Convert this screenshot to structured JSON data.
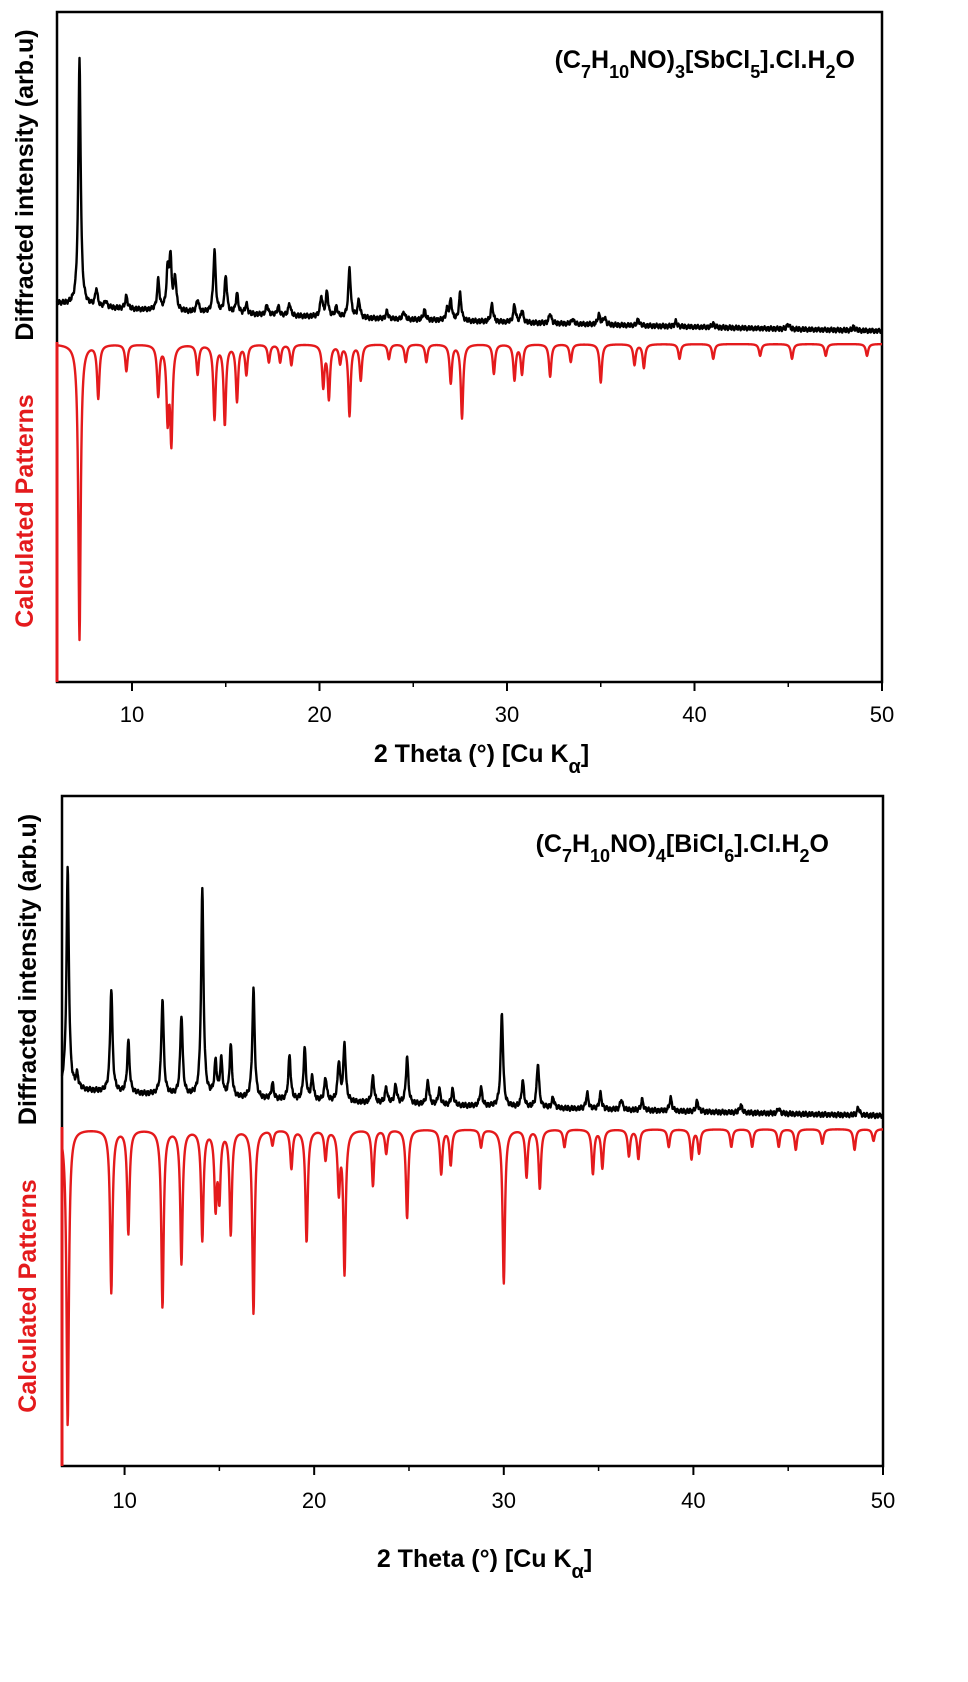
{
  "chart_data": [
    {
      "type": "line",
      "title_parts": [
        {
          "t": "(C",
          "s": "n"
        },
        {
          "t": "7",
          "s": "sub"
        },
        {
          "t": "H",
          "s": "n"
        },
        {
          "t": "10",
          "s": "sub"
        },
        {
          "t": "NO)",
          "s": "n"
        },
        {
          "t": "3",
          "s": "sub"
        },
        {
          "t": "[SbCl",
          "s": "n"
        },
        {
          "t": "5",
          "s": "sub"
        },
        {
          "t": "].Cl.H",
          "s": "n"
        },
        {
          "t": "2",
          "s": "sub"
        },
        {
          "t": "O",
          "s": "n"
        }
      ],
      "xlabel_parts": [
        {
          "t": "2 Theta (°) [Cu K",
          "s": "n"
        },
        {
          "t": "α",
          "s": "sub"
        },
        {
          "t": "]",
          "s": "n"
        }
      ],
      "ylabel_black": "Diffracted intensity (arb.u)",
      "ylabel_red": "Calculated Patterns",
      "xlim": [
        6,
        50
      ],
      "xticks": [
        "10",
        "20",
        "30",
        "40",
        "50"
      ],
      "series": [
        {
          "color": "#000000",
          "baseline": {
            "start": 0.135,
            "end": 0.02
          },
          "peaks": [
            {
              "x": 7.2,
              "h": 1.0
            },
            {
              "x": 8.1,
              "h": 0.07
            },
            {
              "x": 8.6,
              "h": 0.025
            },
            {
              "x": 9.7,
              "h": 0.05
            },
            {
              "x": 11.4,
              "h": 0.12
            },
            {
              "x": 11.9,
              "h": 0.15
            },
            {
              "x": 12.05,
              "h": 0.2
            },
            {
              "x": 12.3,
              "h": 0.13
            },
            {
              "x": 13.5,
              "h": 0.05
            },
            {
              "x": 14.4,
              "h": 0.25
            },
            {
              "x": 15.0,
              "h": 0.15
            },
            {
              "x": 15.6,
              "h": 0.08
            },
            {
              "x": 16.1,
              "h": 0.04
            },
            {
              "x": 17.2,
              "h": 0.04
            },
            {
              "x": 17.8,
              "h": 0.035
            },
            {
              "x": 18.4,
              "h": 0.05
            },
            {
              "x": 20.1,
              "h": 0.08
            },
            {
              "x": 20.4,
              "h": 0.1
            },
            {
              "x": 20.9,
              "h": 0.04
            },
            {
              "x": 21.6,
              "h": 0.2
            },
            {
              "x": 22.1,
              "h": 0.07
            },
            {
              "x": 23.6,
              "h": 0.03
            },
            {
              "x": 24.5,
              "h": 0.03
            },
            {
              "x": 25.6,
              "h": 0.04
            },
            {
              "x": 26.8,
              "h": 0.04
            },
            {
              "x": 27.0,
              "h": 0.08
            },
            {
              "x": 27.5,
              "h": 0.11
            },
            {
              "x": 29.2,
              "h": 0.07
            },
            {
              "x": 30.4,
              "h": 0.07
            },
            {
              "x": 30.8,
              "h": 0.05
            },
            {
              "x": 32.3,
              "h": 0.04
            },
            {
              "x": 33.5,
              "h": 0.02
            },
            {
              "x": 34.9,
              "h": 0.04
            },
            {
              "x": 35.2,
              "h": 0.03
            },
            {
              "x": 37.0,
              "h": 0.025
            },
            {
              "x": 39.0,
              "h": 0.02
            },
            {
              "x": 41.0,
              "h": 0.015
            },
            {
              "x": 45.0,
              "h": 0.02
            },
            {
              "x": 48.5,
              "h": 0.015
            }
          ]
        },
        {
          "color": "#e41a1c",
          "inverted": true,
          "peaks": [
            {
              "x": 7.2,
              "h": 1.0
            },
            {
              "x": 8.2,
              "h": 0.18
            },
            {
              "x": 9.7,
              "h": 0.09
            },
            {
              "x": 11.4,
              "h": 0.17
            },
            {
              "x": 11.9,
              "h": 0.24
            },
            {
              "x": 12.1,
              "h": 0.32
            },
            {
              "x": 13.5,
              "h": 0.1
            },
            {
              "x": 14.4,
              "h": 0.25
            },
            {
              "x": 14.95,
              "h": 0.27
            },
            {
              "x": 15.6,
              "h": 0.19
            },
            {
              "x": 16.1,
              "h": 0.1
            },
            {
              "x": 17.3,
              "h": 0.06
            },
            {
              "x": 17.9,
              "h": 0.06
            },
            {
              "x": 18.5,
              "h": 0.07
            },
            {
              "x": 20.2,
              "h": 0.14
            },
            {
              "x": 20.5,
              "h": 0.18
            },
            {
              "x": 21.1,
              "h": 0.06
            },
            {
              "x": 21.6,
              "h": 0.24
            },
            {
              "x": 22.2,
              "h": 0.12
            },
            {
              "x": 23.7,
              "h": 0.05
            },
            {
              "x": 24.6,
              "h": 0.06
            },
            {
              "x": 25.7,
              "h": 0.06
            },
            {
              "x": 27.0,
              "h": 0.13
            },
            {
              "x": 27.6,
              "h": 0.25
            },
            {
              "x": 29.3,
              "h": 0.1
            },
            {
              "x": 30.4,
              "h": 0.12
            },
            {
              "x": 30.8,
              "h": 0.1
            },
            {
              "x": 32.3,
              "h": 0.11
            },
            {
              "x": 33.4,
              "h": 0.06
            },
            {
              "x": 35.0,
              "h": 0.13
            },
            {
              "x": 36.8,
              "h": 0.07
            },
            {
              "x": 37.3,
              "h": 0.08
            },
            {
              "x": 39.2,
              "h": 0.05
            },
            {
              "x": 41.0,
              "h": 0.05
            },
            {
              "x": 43.5,
              "h": 0.04
            },
            {
              "x": 45.2,
              "h": 0.05
            },
            {
              "x": 47.0,
              "h": 0.04
            },
            {
              "x": 49.2,
              "h": 0.04
            }
          ]
        }
      ]
    },
    {
      "type": "line",
      "title_parts": [
        {
          "t": "(C",
          "s": "n"
        },
        {
          "t": "7",
          "s": "sub"
        },
        {
          "t": "H",
          "s": "n"
        },
        {
          "t": "10",
          "s": "sub"
        },
        {
          "t": "NO)",
          "s": "n"
        },
        {
          "t": "4",
          "s": "sub"
        },
        {
          "t": "[BiCl",
          "s": "n"
        },
        {
          "t": "6",
          "s": "sub"
        },
        {
          "t": "].Cl.H",
          "s": "n"
        },
        {
          "t": "2",
          "s": "sub"
        },
        {
          "t": "O",
          "s": "n"
        }
      ],
      "xlabel_parts": [
        {
          "t": "2 Theta (°) [Cu K",
          "s": "n"
        },
        {
          "t": "α",
          "s": "sub"
        },
        {
          "t": "]",
          "s": "n"
        }
      ],
      "ylabel_black": "Diffracted intensity (arb.u)",
      "ylabel_red": "Calculated Patterns",
      "xlim": [
        6.7,
        50
      ],
      "xticks": [
        "10",
        "20",
        "30",
        "40",
        "50"
      ],
      "series": [
        {
          "color": "#000000",
          "baseline": {
            "start": 0.13,
            "end": 0.02
          },
          "peaks": [
            {
              "x": 7.0,
              "h": 0.85
            },
            {
              "x": 7.5,
              "h": 0.05
            },
            {
              "x": 9.3,
              "h": 0.4
            },
            {
              "x": 10.2,
              "h": 0.2
            },
            {
              "x": 12.0,
              "h": 0.37
            },
            {
              "x": 13.0,
              "h": 0.31
            },
            {
              "x": 14.1,
              "h": 0.8
            },
            {
              "x": 14.8,
              "h": 0.13
            },
            {
              "x": 15.1,
              "h": 0.14
            },
            {
              "x": 15.6,
              "h": 0.2
            },
            {
              "x": 16.8,
              "h": 0.42
            },
            {
              "x": 17.8,
              "h": 0.06
            },
            {
              "x": 18.7,
              "h": 0.17
            },
            {
              "x": 19.5,
              "h": 0.2
            },
            {
              "x": 19.9,
              "h": 0.09
            },
            {
              "x": 20.6,
              "h": 0.09
            },
            {
              "x": 21.3,
              "h": 0.15
            },
            {
              "x": 21.6,
              "h": 0.22
            },
            {
              "x": 23.1,
              "h": 0.1
            },
            {
              "x": 23.8,
              "h": 0.06
            },
            {
              "x": 24.3,
              "h": 0.07
            },
            {
              "x": 24.9,
              "h": 0.18
            },
            {
              "x": 26.0,
              "h": 0.09
            },
            {
              "x": 26.6,
              "h": 0.06
            },
            {
              "x": 27.3,
              "h": 0.06
            },
            {
              "x": 28.8,
              "h": 0.07
            },
            {
              "x": 29.9,
              "h": 0.36
            },
            {
              "x": 31.0,
              "h": 0.1
            },
            {
              "x": 31.8,
              "h": 0.17
            },
            {
              "x": 32.6,
              "h": 0.04
            },
            {
              "x": 34.4,
              "h": 0.06
            },
            {
              "x": 35.1,
              "h": 0.06
            },
            {
              "x": 36.2,
              "h": 0.04
            },
            {
              "x": 37.3,
              "h": 0.04
            },
            {
              "x": 38.8,
              "h": 0.05
            },
            {
              "x": 40.2,
              "h": 0.04
            },
            {
              "x": 42.5,
              "h": 0.03
            },
            {
              "x": 44.5,
              "h": 0.02
            },
            {
              "x": 48.7,
              "h": 0.03
            }
          ]
        },
        {
          "color": "#e41a1c",
          "inverted": true,
          "peaks": [
            {
              "x": 7.0,
              "h": 1.0
            },
            {
              "x": 9.3,
              "h": 0.55
            },
            {
              "x": 10.2,
              "h": 0.35
            },
            {
              "x": 12.0,
              "h": 0.6
            },
            {
              "x": 13.0,
              "h": 0.45
            },
            {
              "x": 14.1,
              "h": 0.37
            },
            {
              "x": 14.8,
              "h": 0.25
            },
            {
              "x": 15.0,
              "h": 0.22
            },
            {
              "x": 15.6,
              "h": 0.35
            },
            {
              "x": 16.8,
              "h": 0.62
            },
            {
              "x": 17.8,
              "h": 0.05
            },
            {
              "x": 18.8,
              "h": 0.13
            },
            {
              "x": 19.6,
              "h": 0.38
            },
            {
              "x": 20.6,
              "h": 0.1
            },
            {
              "x": 21.3,
              "h": 0.2
            },
            {
              "x": 21.6,
              "h": 0.48
            },
            {
              "x": 23.1,
              "h": 0.19
            },
            {
              "x": 23.8,
              "h": 0.08
            },
            {
              "x": 24.9,
              "h": 0.3
            },
            {
              "x": 26.7,
              "h": 0.15
            },
            {
              "x": 27.2,
              "h": 0.12
            },
            {
              "x": 28.8,
              "h": 0.06
            },
            {
              "x": 30.0,
              "h": 0.52
            },
            {
              "x": 31.2,
              "h": 0.16
            },
            {
              "x": 31.9,
              "h": 0.2
            },
            {
              "x": 33.2,
              "h": 0.06
            },
            {
              "x": 34.7,
              "h": 0.15
            },
            {
              "x": 35.2,
              "h": 0.13
            },
            {
              "x": 36.6,
              "h": 0.09
            },
            {
              "x": 37.1,
              "h": 0.1
            },
            {
              "x": 38.7,
              "h": 0.06
            },
            {
              "x": 39.9,
              "h": 0.1
            },
            {
              "x": 40.3,
              "h": 0.08
            },
            {
              "x": 42.0,
              "h": 0.06
            },
            {
              "x": 43.1,
              "h": 0.06
            },
            {
              "x": 44.5,
              "h": 0.06
            },
            {
              "x": 45.4,
              "h": 0.07
            },
            {
              "x": 46.8,
              "h": 0.05
            },
            {
              "x": 48.5,
              "h": 0.07
            },
            {
              "x": 49.5,
              "h": 0.04
            }
          ]
        }
      ]
    }
  ]
}
